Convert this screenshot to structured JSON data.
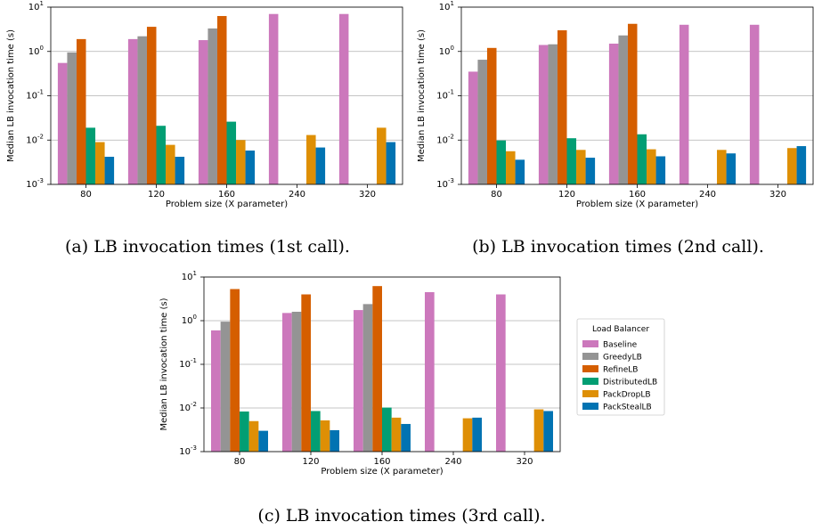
{
  "colors": {
    "Baseline": "#cc78bc",
    "GreedyLB": "#949494",
    "RefineLB": "#d55e00",
    "DistributedLB": "#029e73",
    "PackDropLB": "#de8f05",
    "PackStealLB": "#0173b2"
  },
  "legend": {
    "title": "Load Balancer",
    "entries": [
      "Baseline",
      "GreedyLB",
      "RefineLB",
      "DistributedLB",
      "PackDropLB",
      "PackStealLB"
    ]
  },
  "chart_data": [
    {
      "type": "bar",
      "caption": "(a) LB invocation times (1st call).",
      "xlabel": "Problem size (X parameter)",
      "ylabel": "Median LB invocation time (s)",
      "yscale": "log",
      "ylim": [
        0.001,
        10
      ],
      "yticks": [
        "10",
        "10",
        "10",
        "10",
        "10"
      ],
      "yexp": [
        "-3",
        "-2",
        "-1",
        "0",
        "1"
      ],
      "grid": "y",
      "categories": [
        "80",
        "120",
        "160",
        "240",
        "320"
      ],
      "series": [
        {
          "name": "Baseline",
          "values": [
            0.55,
            1.9,
            1.8,
            7.0,
            7.0
          ]
        },
        {
          "name": "GreedyLB",
          "values": [
            0.95,
            2.2,
            3.3,
            null,
            null
          ]
        },
        {
          "name": "RefineLB",
          "values": [
            1.9,
            3.6,
            6.3,
            null,
            null
          ]
        },
        {
          "name": "DistributedLB",
          "values": [
            0.019,
            0.021,
            0.026,
            null,
            null
          ]
        },
        {
          "name": "PackDropLB",
          "values": [
            0.009,
            0.0078,
            0.01,
            0.013,
            0.019
          ]
        },
        {
          "name": "PackStealLB",
          "values": [
            0.0042,
            0.0042,
            0.0058,
            0.0068,
            0.009
          ]
        }
      ]
    },
    {
      "type": "bar",
      "caption": "(b) LB invocation times (2nd call).",
      "xlabel": "Problem size (X parameter)",
      "ylabel": "Median LB invocation time (s)",
      "yscale": "log",
      "ylim": [
        0.001,
        10
      ],
      "yticks": [
        "10",
        "10",
        "10",
        "10",
        "10"
      ],
      "yexp": [
        "-3",
        "-2",
        "-1",
        "0",
        "1"
      ],
      "grid": "y",
      "categories": [
        "80",
        "120",
        "160",
        "240",
        "320"
      ],
      "series": [
        {
          "name": "Baseline",
          "values": [
            0.35,
            1.4,
            1.5,
            4.0,
            4.0
          ]
        },
        {
          "name": "GreedyLB",
          "values": [
            0.65,
            1.45,
            2.3,
            null,
            null
          ]
        },
        {
          "name": "RefineLB",
          "values": [
            1.2,
            3.0,
            4.2,
            null,
            null
          ]
        },
        {
          "name": "DistributedLB",
          "values": [
            0.0098,
            0.011,
            0.0135,
            null,
            null
          ]
        },
        {
          "name": "PackDropLB",
          "values": [
            0.0056,
            0.006,
            0.0062,
            0.006,
            0.0066
          ]
        },
        {
          "name": "PackStealLB",
          "values": [
            0.0036,
            0.004,
            0.0043,
            0.005,
            0.0073
          ]
        }
      ]
    },
    {
      "type": "bar",
      "caption": "(c) LB invocation times (3rd call).",
      "xlabel": "Problem size (X parameter)",
      "ylabel": "Median LB invocation time (s)",
      "yscale": "log",
      "ylim": [
        0.001,
        10
      ],
      "yticks": [
        "10",
        "10",
        "10",
        "10",
        "10"
      ],
      "yexp": [
        "-3",
        "-2",
        "-1",
        "0",
        "1"
      ],
      "grid": "y",
      "legend": "right",
      "categories": [
        "80",
        "120",
        "160",
        "240",
        "320"
      ],
      "series": [
        {
          "name": "Baseline",
          "values": [
            0.6,
            1.5,
            1.75,
            4.5,
            4.0
          ]
        },
        {
          "name": "GreedyLB",
          "values": [
            0.95,
            1.6,
            2.4,
            null,
            null
          ]
        },
        {
          "name": "RefineLB",
          "values": [
            5.3,
            4.0,
            6.2,
            null,
            null
          ]
        },
        {
          "name": "DistributedLB",
          "values": [
            0.0083,
            0.0085,
            0.0102,
            null,
            null
          ]
        },
        {
          "name": "PackDropLB",
          "values": [
            0.005,
            0.0052,
            0.006,
            0.0058,
            0.0093
          ]
        },
        {
          "name": "PackStealLB",
          "values": [
            0.003,
            0.0031,
            0.0043,
            0.006,
            0.0085
          ]
        }
      ]
    }
  ]
}
